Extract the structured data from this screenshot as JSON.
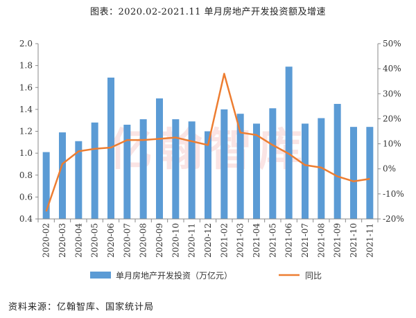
{
  "chart_data": {
    "type": "bar+line",
    "title": "图表：2020.02-2021.11 单月房地产开发投资额及增速",
    "categories": [
      "2020-02",
      "2020-03",
      "2020-04",
      "2020-05",
      "2020-06",
      "2020-07",
      "2020-08",
      "2020-09",
      "2020-10",
      "2020-11",
      "2020-12",
      "2021-02",
      "2021-03",
      "2021-04",
      "2021-05",
      "2021-06",
      "2021-07",
      "2021-08",
      "2021-09",
      "2021-10",
      "2021-11"
    ],
    "series": [
      {
        "name": "单月房地产开发投资（万亿元）",
        "type": "bar",
        "axis": "left",
        "color": "#5b9bd5",
        "values": [
          1.01,
          1.19,
          1.11,
          1.28,
          1.69,
          1.26,
          1.31,
          1.5,
          1.31,
          1.29,
          1.2,
          1.4,
          1.36,
          1.27,
          1.41,
          1.79,
          1.27,
          1.32,
          1.45,
          1.24,
          1.24
        ]
      },
      {
        "name": "同比",
        "type": "line",
        "axis": "right",
        "color": "#ed7d31",
        "values": [
          -17,
          2,
          7,
          8,
          8.5,
          11.5,
          11.5,
          12,
          12.5,
          11,
          9.5,
          38,
          14.5,
          13.5,
          9.5,
          6,
          1.5,
          0.5,
          -3,
          -5,
          -4
        ]
      }
    ],
    "y_left": {
      "range": [
        0.4,
        2.0
      ],
      "ticks": [
        "0.4",
        "0.6",
        "0.8",
        "1.0",
        "1.2",
        "1.4",
        "1.6",
        "1.8",
        "2.0"
      ]
    },
    "y_right": {
      "range": [
        -20,
        50
      ],
      "unit": "%",
      "ticks": [
        "-20%",
        "-10%",
        "0%",
        "10%",
        "20%",
        "30%",
        "40%",
        "50%"
      ]
    },
    "grid": false,
    "legend_position": "bottom"
  },
  "source": "资料来源：亿翰智库、国家统计局",
  "watermark": "亿翰智库"
}
